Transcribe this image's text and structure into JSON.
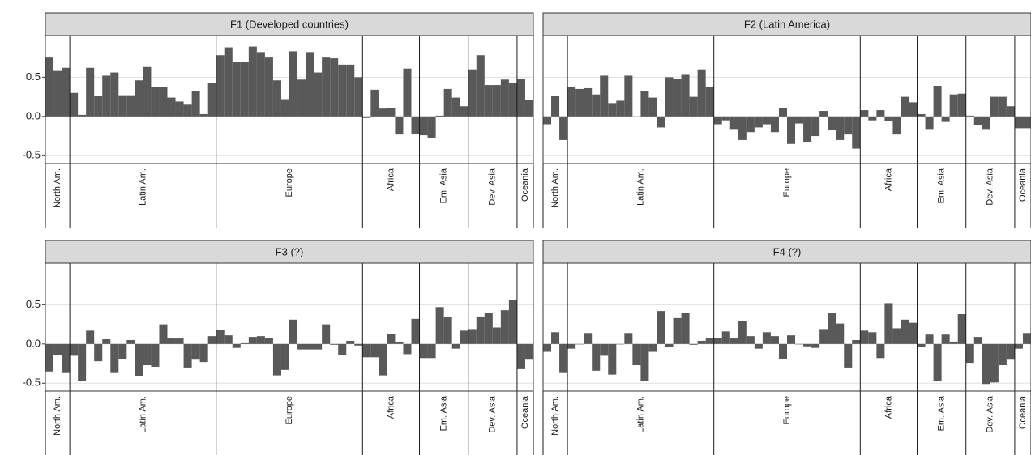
{
  "chart_data": [
    {
      "type": "bar",
      "title": "F1 (Developed countries)",
      "color": "#595959",
      "grid": true,
      "ylim": [
        -0.6,
        1.03
      ],
      "yticks": [
        -0.5,
        {
          "value": 0,
          "label": "0.0"
        },
        0.5
      ],
      "groups": [
        {
          "label": "North Am.",
          "values": [
            0.75,
            0.58,
            0.62
          ]
        },
        {
          "label": "Latin Am.",
          "values": [
            0.3,
            0.02,
            0.62,
            0.26,
            0.52,
            0.56,
            0.27,
            0.27,
            0.46,
            0.63,
            0.38,
            0.38,
            0.24,
            0.19,
            0.15,
            0.32,
            0.03,
            0.43
          ]
        },
        {
          "label": "Europe",
          "values": [
            0.78,
            0.88,
            0.7,
            0.69,
            0.89,
            0.82,
            0.75,
            0.46,
            0.22,
            0.83,
            0.47,
            0.82,
            0.56,
            0.75,
            0.74,
            0.66,
            0.66,
            0.5
          ]
        },
        {
          "label": "Africa",
          "values": [
            -0.02,
            0.34,
            0.1,
            0.11,
            -0.23,
            0.61,
            -0.22
          ]
        },
        {
          "label": "Em. Asia",
          "values": [
            -0.24,
            -0.27,
            0.01,
            0.35,
            0.24,
            0.13
          ]
        },
        {
          "label": "Dev. Asia",
          "values": [
            0.6,
            0.78,
            0.4,
            0.4,
            0.47,
            0.43
          ]
        },
        {
          "label": "Oceania",
          "values": [
            0.48,
            0.21
          ]
        }
      ]
    },
    {
      "type": "bar",
      "title": "F2 (Latin America)",
      "color": "#595959",
      "grid": true,
      "ylim": [
        -0.6,
        1.03
      ],
      "yticks": [
        -0.5,
        {
          "value": 0,
          "label": "0.0"
        },
        0.5
      ],
      "groups": [
        {
          "label": "North Am.",
          "values": [
            -0.1,
            0.26,
            -0.3
          ]
        },
        {
          "label": "Latin Am.",
          "values": [
            0.38,
            0.35,
            0.36,
            0.28,
            0.52,
            0.17,
            0.2,
            0.52,
            -0.01,
            0.32,
            0.24,
            -0.14,
            0.5,
            0.48,
            0.53,
            0.25,
            0.6,
            0.37
          ]
        },
        {
          "label": "Europe",
          "values": [
            -0.1,
            -0.05,
            -0.16,
            -0.3,
            -0.2,
            -0.14,
            -0.1,
            -0.2,
            0.11,
            -0.35,
            -0.09,
            -0.33,
            -0.25,
            0.07,
            -0.17,
            -0.3,
            -0.23,
            -0.41
          ]
        },
        {
          "label": "Africa",
          "values": [
            0.08,
            -0.05,
            0.08,
            -0.06,
            -0.23,
            0.25,
            0.18
          ]
        },
        {
          "label": "Em. Asia",
          "values": [
            0.03,
            -0.16,
            0.39,
            -0.07,
            0.28,
            0.29
          ]
        },
        {
          "label": "Dev. Asia",
          "values": [
            0.01,
            -0.11,
            -0.16,
            0.25,
            0.25,
            0.13
          ]
        },
        {
          "label": "Oceania",
          "values": [
            -0.15,
            -0.15
          ]
        }
      ]
    },
    {
      "type": "bar",
      "title": "F3 (?)",
      "color": "#595959",
      "grid": true,
      "ylim": [
        -0.6,
        1.03
      ],
      "yticks": [
        -0.5,
        {
          "value": 0,
          "label": "0.0"
        },
        0.5
      ],
      "groups": [
        {
          "label": "North Am.",
          "values": [
            -0.35,
            -0.14,
            -0.37
          ]
        },
        {
          "label": "Latin Am.",
          "values": [
            -0.15,
            -0.47,
            0.17,
            -0.22,
            0.06,
            -0.37,
            -0.19,
            0.05,
            -0.41,
            -0.27,
            -0.29,
            0.25,
            0.07,
            0.07,
            -0.3,
            -0.2,
            -0.23,
            0.1
          ]
        },
        {
          "label": "Europe",
          "values": [
            0.18,
            0.11,
            -0.05,
            0.01,
            0.09,
            0.1,
            0.08,
            -0.4,
            -0.33,
            0.31,
            -0.07,
            -0.07,
            -0.07,
            0.25,
            -0.01,
            -0.14,
            0.04,
            -0.02
          ]
        },
        {
          "label": "Africa",
          "values": [
            -0.17,
            -0.17,
            -0.4,
            0.13,
            0.02,
            -0.13,
            0.32
          ]
        },
        {
          "label": "Em. Asia",
          "values": [
            -0.18,
            -0.18,
            0.47,
            0.34,
            -0.06,
            0.17
          ]
        },
        {
          "label": "Dev. Asia",
          "values": [
            0.19,
            0.35,
            0.4,
            0.21,
            0.43,
            0.56
          ]
        },
        {
          "label": "Oceania",
          "values": [
            -0.32,
            -0.2
          ]
        }
      ]
    },
    {
      "type": "bar",
      "title": "F4 (?)",
      "color": "#595959",
      "grid": true,
      "ylim": [
        -0.6,
        1.03
      ],
      "yticks": [
        -0.5,
        {
          "value": 0,
          "label": "0.0"
        },
        0.5
      ],
      "groups": [
        {
          "label": "North Am.",
          "values": [
            -0.1,
            0.15,
            -0.37
          ]
        },
        {
          "label": "Latin Am.",
          "values": [
            -0.06,
            0,
            0.14,
            -0.34,
            -0.15,
            -0.39,
            0,
            0.14,
            -0.27,
            -0.47,
            -0.1,
            0.42,
            -0.04,
            0.33,
            0.4,
            -0.01,
            0.04,
            0.07
          ]
        },
        {
          "label": "Europe",
          "values": [
            0.08,
            0.16,
            0.07,
            0.29,
            0.1,
            -0.06,
            0.15,
            0.1,
            -0.19,
            0.11,
            0,
            -0.03,
            -0.05,
            0.19,
            0.39,
            0.26,
            -0.3,
            0.05
          ]
        },
        {
          "label": "Africa",
          "values": [
            0.17,
            0.15,
            -0.18,
            0.52,
            0.2,
            0.31,
            0.27
          ]
        },
        {
          "label": "Em. Asia",
          "values": [
            -0.04,
            0.12,
            -0.47,
            0.12,
            0.03,
            0.38
          ]
        },
        {
          "label": "Dev. Asia",
          "values": [
            -0.24,
            0.09,
            -0.51,
            -0.49,
            -0.27,
            -0.2
          ]
        },
        {
          "label": "Oceania",
          "values": [
            -0.06,
            0.14
          ]
        }
      ]
    }
  ]
}
